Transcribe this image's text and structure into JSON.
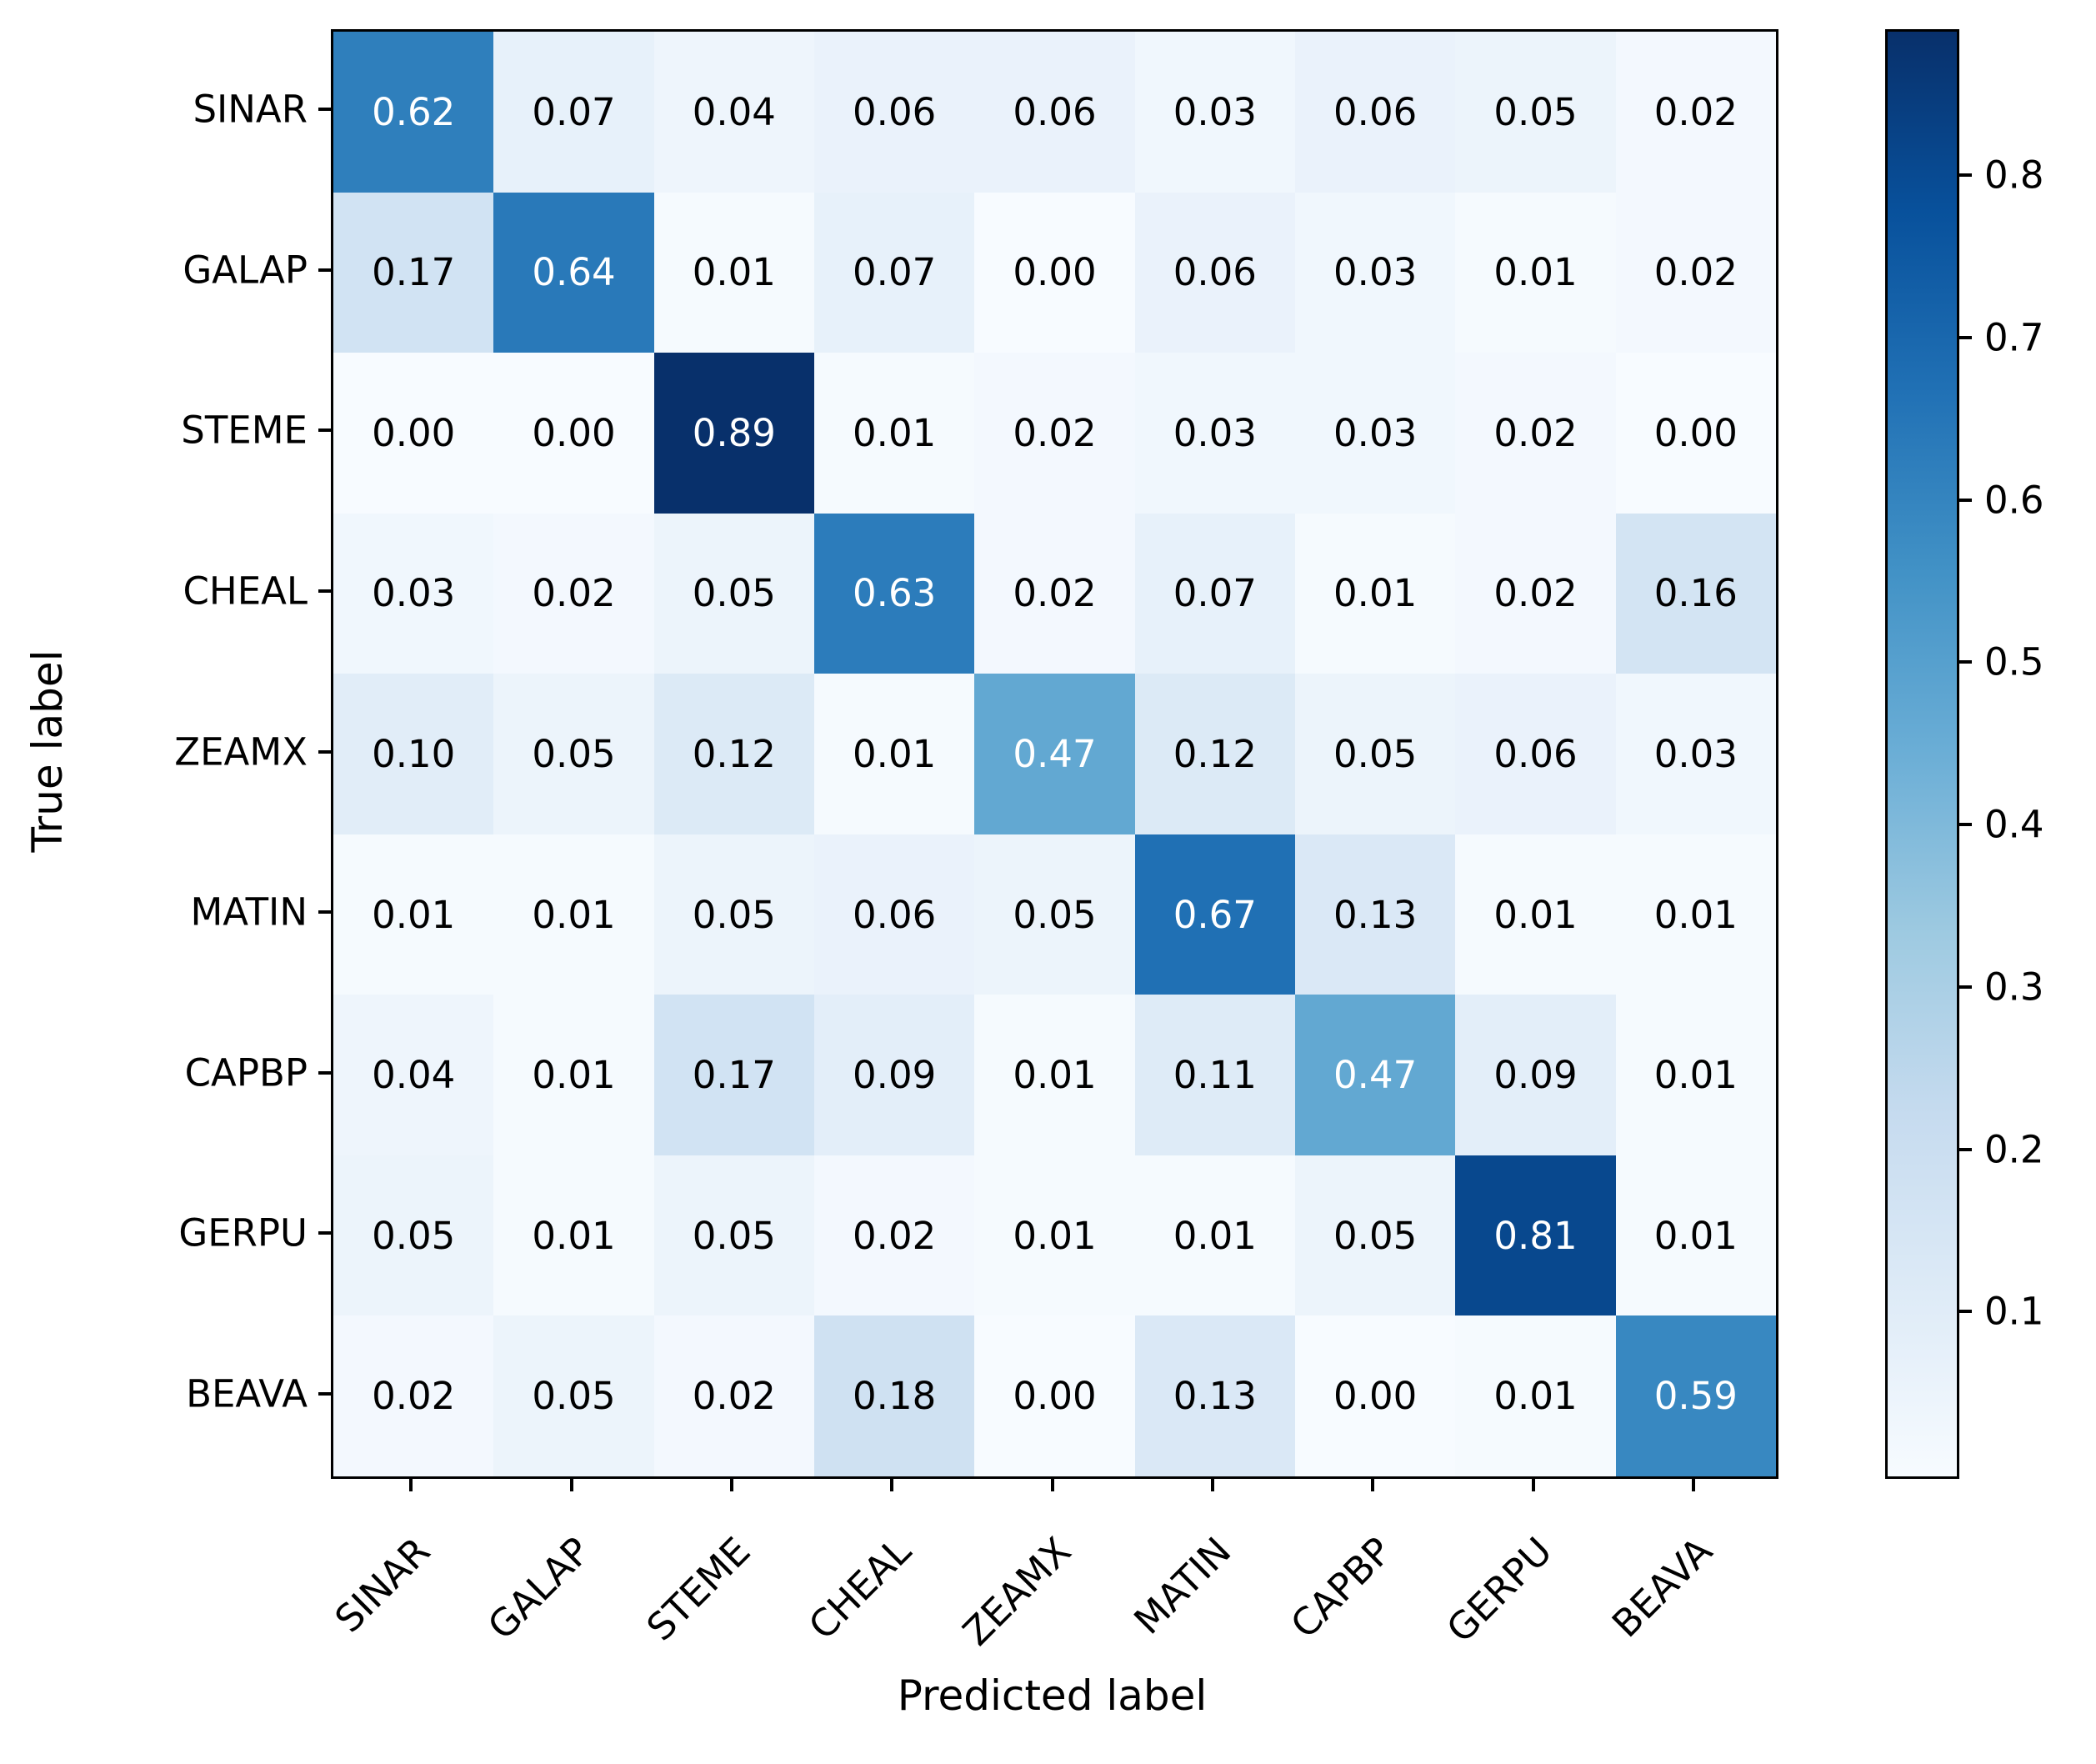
{
  "chart_data": {
    "type": "heatmap",
    "title": "",
    "xlabel": "Predicted label",
    "ylabel": "True label",
    "categories": [
      "SINAR",
      "GALAP",
      "STEME",
      "CHEAL",
      "ZEAMX",
      "MATIN",
      "CAPBP",
      "GERPU",
      "BEAVA"
    ],
    "matrix": [
      [
        0.62,
        0.07,
        0.04,
        0.06,
        0.06,
        0.03,
        0.06,
        0.05,
        0.02
      ],
      [
        0.17,
        0.64,
        0.01,
        0.07,
        0.0,
        0.06,
        0.03,
        0.01,
        0.02
      ],
      [
        0.0,
        0.0,
        0.89,
        0.01,
        0.02,
        0.03,
        0.03,
        0.02,
        0.0
      ],
      [
        0.03,
        0.02,
        0.05,
        0.63,
        0.02,
        0.07,
        0.01,
        0.02,
        0.16
      ],
      [
        0.1,
        0.05,
        0.12,
        0.01,
        0.47,
        0.12,
        0.05,
        0.06,
        0.03
      ],
      [
        0.01,
        0.01,
        0.05,
        0.06,
        0.05,
        0.67,
        0.13,
        0.01,
        0.01
      ],
      [
        0.04,
        0.01,
        0.17,
        0.09,
        0.01,
        0.11,
        0.47,
        0.09,
        0.01
      ],
      [
        0.05,
        0.01,
        0.05,
        0.02,
        0.01,
        0.01,
        0.05,
        0.81,
        0.01
      ],
      [
        0.02,
        0.05,
        0.02,
        0.18,
        0.0,
        0.13,
        0.0,
        0.01,
        0.59
      ]
    ],
    "value_format_decimals": 2,
    "vmin": 0.0,
    "vmax": 0.89,
    "colormap": "Blues",
    "colormap_anchors": [
      {
        "t": 0.0,
        "color": "#f7fbff"
      },
      {
        "t": 0.125,
        "color": "#deebf7"
      },
      {
        "t": 0.25,
        "color": "#c6dbef"
      },
      {
        "t": 0.375,
        "color": "#9ecae1"
      },
      {
        "t": 0.5,
        "color": "#6baed6"
      },
      {
        "t": 0.625,
        "color": "#9ecae1"
      },
      {
        "t": 0.75,
        "color": "#2171b5"
      },
      {
        "t": 0.875,
        "color": "#08519c"
      },
      {
        "t": 1.0,
        "color": "#08306b"
      }
    ],
    "cell_text_colors": {
      "light": "#ffffff",
      "dark": "#000000"
    },
    "text_color_threshold": 0.445,
    "colorbar_ticks": [
      0.8,
      0.7,
      0.6,
      0.5,
      0.4,
      0.3,
      0.2,
      0.1
    ],
    "colorbar_tick_labels": [
      "0.8",
      "0.7",
      "0.6",
      "0.5",
      "0.4",
      "0.3",
      "0.2",
      "0.1"
    ],
    "grid": false,
    "legend_position": "colorbar-right"
  }
}
